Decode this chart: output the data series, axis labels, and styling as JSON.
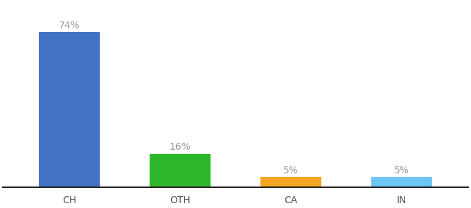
{
  "categories": [
    "CH",
    "OTH",
    "CA",
    "IN"
  ],
  "values": [
    74,
    16,
    5,
    5
  ],
  "bar_colors": [
    "#4472c4",
    "#2db82b",
    "#f5a623",
    "#6ec6f5"
  ],
  "labels": [
    "74%",
    "16%",
    "5%",
    "5%"
  ],
  "label_fontsize": 10,
  "tick_fontsize": 10,
  "background_color": "#ffffff",
  "ylim": [
    0,
    88
  ],
  "bar_width": 0.55
}
